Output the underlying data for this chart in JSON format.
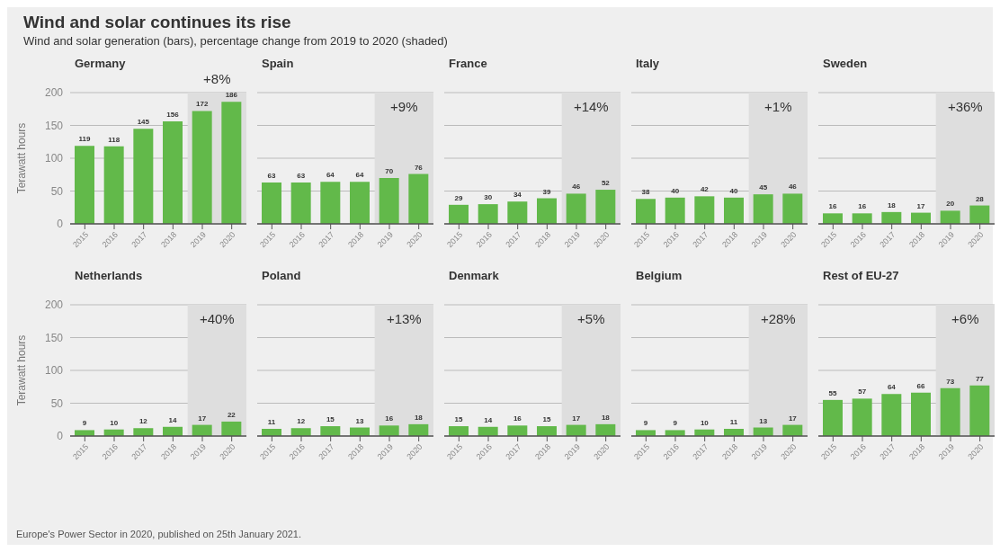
{
  "chart_data": [
    {
      "type": "other",
      "title": "Wind and solar continues its rise",
      "subtitle": "Wind and solar generation (bars), percentage change from 2019 to 2020 (shaded)",
      "annotations": [
        "Europe's Power Sector in 2020, published on 25th January 2021."
      ]
    },
    {
      "type": "bar",
      "title": "Germany",
      "ylabel": "Terawatt hours",
      "categories": [
        "2015",
        "2016",
        "2017",
        "2018",
        "2019",
        "2020"
      ],
      "values": [
        119,
        118,
        145,
        156,
        172,
        186
      ],
      "color": "#62b94a",
      "ylim": [
        0,
        200
      ],
      "yticks": [
        0,
        50,
        100,
        150,
        200
      ],
      "grid": "y",
      "data_labels": true,
      "bands": [
        {
          "axis": "x",
          "from": "2019",
          "to": "2020",
          "label": "+8%",
          "color": "#dedede"
        }
      ]
    },
    {
      "type": "bar",
      "title": "Spain",
      "categories": [
        "2015",
        "2016",
        "2017",
        "2018",
        "2019",
        "2020"
      ],
      "values": [
        63,
        63,
        64,
        64,
        70,
        76
      ],
      "color": "#62b94a",
      "ylim": [
        0,
        200
      ],
      "yticks": [
        0,
        50,
        100,
        150,
        200
      ],
      "grid": "y",
      "data_labels": true,
      "tick_labels": "x",
      "bands": [
        {
          "axis": "x",
          "from": "2019",
          "to": "2020",
          "label": "+9%",
          "color": "#dedede"
        }
      ]
    },
    {
      "type": "bar",
      "title": "France",
      "categories": [
        "2015",
        "2016",
        "2017",
        "2018",
        "2019",
        "2020"
      ],
      "values": [
        29,
        30,
        34,
        39,
        46,
        52
      ],
      "color": "#62b94a",
      "ylim": [
        0,
        200
      ],
      "yticks": [
        0,
        50,
        100,
        150,
        200
      ],
      "grid": "y",
      "data_labels": true,
      "tick_labels": "x",
      "bands": [
        {
          "axis": "x",
          "from": "2019",
          "to": "2020",
          "label": "+14%",
          "color": "#dedede"
        }
      ]
    },
    {
      "type": "bar",
      "title": "Italy",
      "categories": [
        "2015",
        "2016",
        "2017",
        "2018",
        "2019",
        "2020"
      ],
      "values": [
        38,
        40,
        42,
        40,
        45,
        46
      ],
      "color": "#62b94a",
      "ylim": [
        0,
        200
      ],
      "yticks": [
        0,
        50,
        100,
        150,
        200
      ],
      "grid": "y",
      "data_labels": true,
      "tick_labels": "x",
      "bands": [
        {
          "axis": "x",
          "from": "2019",
          "to": "2020",
          "label": "+1%",
          "color": "#dedede"
        }
      ]
    },
    {
      "type": "bar",
      "title": "Sweden",
      "categories": [
        "2015",
        "2016",
        "2017",
        "2018",
        "2019",
        "2020"
      ],
      "values": [
        16,
        16,
        18,
        17,
        20,
        28
      ],
      "color": "#62b94a",
      "ylim": [
        0,
        200
      ],
      "yticks": [
        0,
        50,
        100,
        150,
        200
      ],
      "grid": "y",
      "data_labels": true,
      "tick_labels": "x",
      "bands": [
        {
          "axis": "x",
          "from": "2019",
          "to": "2020",
          "label": "+36%",
          "color": "#dedede"
        }
      ]
    },
    {
      "type": "bar",
      "title": "Netherlands",
      "ylabel": "Terawatt hours",
      "categories": [
        "2015",
        "2016",
        "2017",
        "2018",
        "2019",
        "2020"
      ],
      "values": [
        9,
        10,
        12,
        14,
        17,
        22
      ],
      "color": "#62b94a",
      "ylim": [
        0,
        200
      ],
      "yticks": [
        0,
        50,
        100,
        150,
        200
      ],
      "grid": "y",
      "data_labels": true,
      "bands": [
        {
          "axis": "x",
          "from": "2019",
          "to": "2020",
          "label": "+40%",
          "color": "#dedede"
        }
      ]
    },
    {
      "type": "bar",
      "title": "Poland",
      "categories": [
        "2015",
        "2016",
        "2017",
        "2018",
        "2019",
        "2020"
      ],
      "values": [
        11,
        12,
        15,
        13,
        16,
        18
      ],
      "color": "#62b94a",
      "ylim": [
        0,
        200
      ],
      "yticks": [
        0,
        50,
        100,
        150,
        200
      ],
      "grid": "y",
      "data_labels": true,
      "tick_labels": "x",
      "bands": [
        {
          "axis": "x",
          "from": "2019",
          "to": "2020",
          "label": "+13%",
          "color": "#dedede"
        }
      ]
    },
    {
      "type": "bar",
      "title": "Denmark",
      "categories": [
        "2015",
        "2016",
        "2017",
        "2018",
        "2019",
        "2020"
      ],
      "values": [
        15,
        14,
        16,
        15,
        17,
        18
      ],
      "color": "#62b94a",
      "ylim": [
        0,
        200
      ],
      "yticks": [
        0,
        50,
        100,
        150,
        200
      ],
      "grid": "y",
      "data_labels": true,
      "tick_labels": "x",
      "bands": [
        {
          "axis": "x",
          "from": "2019",
          "to": "2020",
          "label": "+5%",
          "color": "#dedede"
        }
      ]
    },
    {
      "type": "bar",
      "title": "Belgium",
      "categories": [
        "2015",
        "2016",
        "2017",
        "2018",
        "2019",
        "2020"
      ],
      "values": [
        9,
        9,
        10,
        11,
        13,
        17
      ],
      "color": "#62b94a",
      "ylim": [
        0,
        200
      ],
      "yticks": [
        0,
        50,
        100,
        150,
        200
      ],
      "grid": "y",
      "data_labels": true,
      "tick_labels": "x",
      "bands": [
        {
          "axis": "x",
          "from": "2019",
          "to": "2020",
          "label": "+28%",
          "color": "#dedede"
        }
      ]
    },
    {
      "type": "bar",
      "title": "Rest of EU-27",
      "categories": [
        "2015",
        "2016",
        "2017",
        "2018",
        "2019",
        "2020"
      ],
      "values": [
        55,
        57,
        64,
        66,
        73,
        77
      ],
      "color": "#62b94a",
      "ylim": [
        0,
        200
      ],
      "yticks": [
        0,
        50,
        100,
        150,
        200
      ],
      "grid": "y",
      "data_labels": true,
      "tick_labels": "x",
      "bands": [
        {
          "axis": "x",
          "from": "2019",
          "to": "2020",
          "label": "+6%",
          "color": "#dedede"
        }
      ]
    }
  ]
}
